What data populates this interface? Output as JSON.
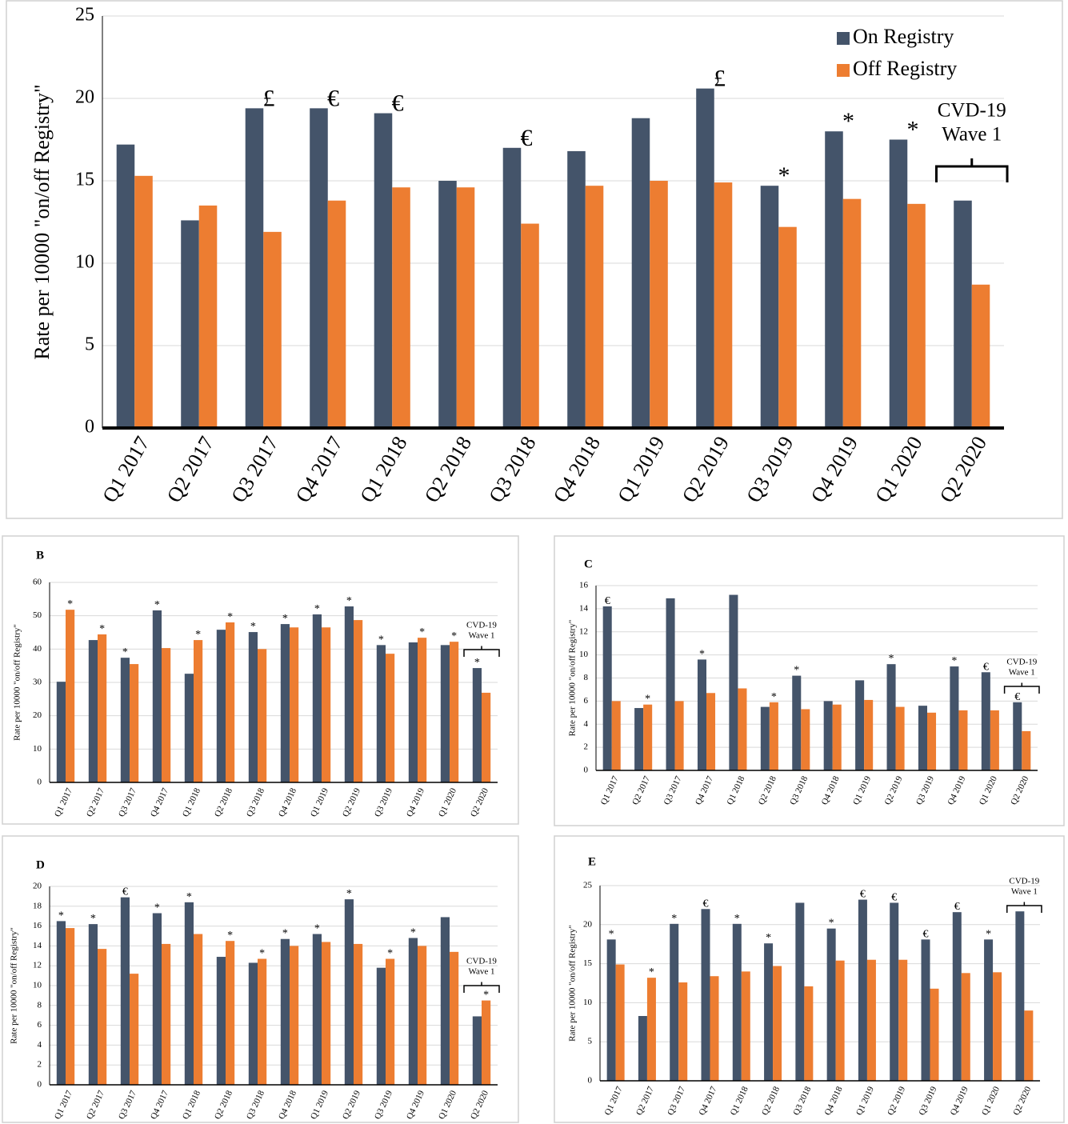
{
  "chart_data": [
    {
      "type": "bar",
      "y_label": "Rate per 10000 \"on/off Registry\"",
      "categories": [
        "Q1 2017",
        "Q2 2017",
        "Q3 2017",
        "Q4 2017",
        "Q1 2018",
        "Q2 2018",
        "Q3 2018",
        "Q4 2018",
        "Q1 2019",
        "Q2 2019",
        "Q3 2019",
        "Q4 2019",
        "Q1 2020",
        "Q2 2020"
      ],
      "series": [
        {
          "name": "On Registry",
          "color": "#44546a",
          "values": [
            17.2,
            12.6,
            19.4,
            19.4,
            19.1,
            15.0,
            17.0,
            16.8,
            18.8,
            20.6,
            14.7,
            18.0,
            17.5,
            13.8
          ]
        },
        {
          "name": "Off Registry",
          "color": "#ed7d31",
          "values": [
            15.3,
            13.5,
            11.9,
            13.8,
            14.6,
            14.6,
            12.4,
            14.7,
            15.0,
            14.9,
            12.2,
            13.9,
            13.6,
            8.7
          ]
        }
      ],
      "annotations": [
        null,
        null,
        "£",
        "€",
        "€",
        null,
        "€",
        null,
        null,
        "£",
        "*",
        "*",
        "*",
        null
      ],
      "bracket_label": [
        "CVD-19",
        "Wave 1"
      ],
      "ylim": [
        0,
        25
      ],
      "yticks": [
        0,
        5,
        10,
        15,
        20,
        25
      ],
      "grid": true
    },
    {
      "type": "bar",
      "panel_label": "B",
      "y_label": "Rate per 10000 \"on/off Registry\"",
      "categories": [
        "Q1 2017",
        "Q2 2017",
        "Q3 2017",
        "Q4 2017",
        "Q1 2018",
        "Q2 2018",
        "Q3 2018",
        "Q4 2018",
        "Q1 2019",
        "Q2 2019",
        "Q3 2019",
        "Q4 2019",
        "Q1 2020",
        "Q2 2020"
      ],
      "series": [
        {
          "color": "#44546a",
          "values": [
            30.2,
            42.7,
            37.4,
            51.6,
            32.6,
            45.8,
            45.1,
            47.5,
            50.4,
            52.8,
            41.2,
            42.0,
            41.2,
            34.3
          ]
        },
        {
          "color": "#ed7d31",
          "values": [
            51.8,
            44.4,
            35.5,
            40.3,
            42.7,
            48.0,
            40.0,
            46.5,
            46.5,
            48.7,
            38.6,
            43.4,
            42.2,
            26.9
          ]
        }
      ],
      "annotations": [
        "*",
        "*",
        "*",
        "*",
        "*",
        "*",
        "*",
        "*",
        "*",
        "*",
        "*",
        "*",
        "*",
        "*"
      ],
      "bracket_label": [
        "CVD-19",
        "Wave 1"
      ],
      "ylim": [
        0,
        60
      ],
      "yticks": [
        0,
        10,
        20,
        30,
        40,
        50,
        60
      ],
      "grid": true
    },
    {
      "type": "bar",
      "panel_label": "C",
      "y_label": "Rate per 10000 \"on/off Registry\"",
      "categories": [
        "Q1 2017",
        "Q2 2017",
        "Q3 2017",
        "Q4 2017",
        "Q1 2018",
        "Q2 2018",
        "Q3 2018",
        "Q4 2018",
        "Q1 2019",
        "Q2 2019",
        "Q3 2019",
        "Q4 2019",
        "Q1 2020",
        "Q2 2020"
      ],
      "series": [
        {
          "color": "#44546a",
          "values": [
            14.2,
            5.4,
            14.9,
            9.6,
            15.2,
            5.5,
            8.2,
            6.0,
            7.8,
            9.2,
            5.6,
            9.0,
            8.5,
            5.9
          ]
        },
        {
          "color": "#ed7d31",
          "values": [
            6.0,
            5.7,
            6.0,
            6.7,
            7.1,
            5.9,
            5.3,
            5.7,
            6.1,
            5.5,
            5.0,
            5.2,
            5.2,
            3.4
          ]
        }
      ],
      "annotations": [
        "€",
        "*",
        null,
        "*",
        null,
        "*",
        "*",
        null,
        null,
        "*",
        null,
        "*",
        "€",
        "€"
      ],
      "bracket_label": [
        "CVD-19",
        "Wave 1"
      ],
      "ylim": [
        0,
        16
      ],
      "yticks": [
        0,
        2,
        4,
        6,
        8,
        10,
        12,
        14,
        16
      ],
      "grid": true
    },
    {
      "type": "bar",
      "panel_label": "D",
      "y_label": "Rate per 10000 \"on/off Registry\"",
      "categories": [
        "Q1 2017",
        "Q2 2017",
        "Q3 2017",
        "Q4 2017",
        "Q1 2018",
        "Q2 2018",
        "Q3 2018",
        "Q4 2018",
        "Q1 2019",
        "Q2 2019",
        "Q3 2019",
        "Q4 2019",
        "Q1 2020",
        "Q2 2020"
      ],
      "series": [
        {
          "color": "#44546a",
          "values": [
            16.5,
            16.2,
            18.9,
            17.3,
            18.4,
            12.9,
            12.3,
            14.7,
            15.2,
            18.7,
            11.8,
            14.8,
            16.9,
            6.9
          ]
        },
        {
          "color": "#ed7d31",
          "values": [
            15.8,
            13.7,
            11.2,
            14.2,
            15.2,
            14.5,
            12.7,
            14.0,
            14.4,
            14.2,
            12.7,
            14.0,
            13.4,
            8.5
          ]
        }
      ],
      "annotations": [
        "*",
        "*",
        "€",
        "*",
        "*",
        "*",
        "*",
        "*",
        "*",
        "*",
        "*",
        "*",
        null,
        "*"
      ],
      "bracket_label": [
        "CVD-19",
        "Wave 1"
      ],
      "ylim": [
        0,
        20
      ],
      "yticks": [
        0,
        2,
        4,
        6,
        8,
        10,
        12,
        14,
        16,
        18,
        20
      ],
      "grid": true
    },
    {
      "type": "bar",
      "panel_label": "E",
      "y_label": "Rate per 10000 \"on/off Registry\"",
      "categories": [
        "Q1 2017",
        "Q2 2017",
        "Q3 2017",
        "Q4 2017",
        "Q1 2018",
        "Q2 2018",
        "Q3 2018",
        "Q4 2018",
        "Q1 2019",
        "Q2 2019",
        "Q3 2019",
        "Q4 2019",
        "Q1 2020",
        "Q2 2020"
      ],
      "series": [
        {
          "color": "#44546a",
          "values": [
            18.1,
            8.3,
            20.1,
            22.0,
            20.1,
            17.6,
            22.8,
            19.5,
            23.2,
            22.8,
            18.1,
            21.6,
            18.1,
            21.7
          ]
        },
        {
          "color": "#ed7d31",
          "values": [
            14.9,
            13.2,
            12.6,
            13.4,
            14.0,
            14.7,
            12.1,
            15.4,
            15.5,
            15.5,
            11.8,
            13.8,
            13.9,
            9.0
          ]
        }
      ],
      "annotations": [
        "*",
        "*",
        "*",
        "€",
        "*",
        "*",
        null,
        "*",
        "€",
        "€",
        "€",
        "€",
        "*",
        null
      ],
      "bracket_label": [
        "CVD-19",
        "Wave 1"
      ],
      "ylim": [
        0,
        25
      ],
      "yticks": [
        0,
        5,
        10,
        15,
        20,
        25
      ],
      "grid": true
    }
  ]
}
